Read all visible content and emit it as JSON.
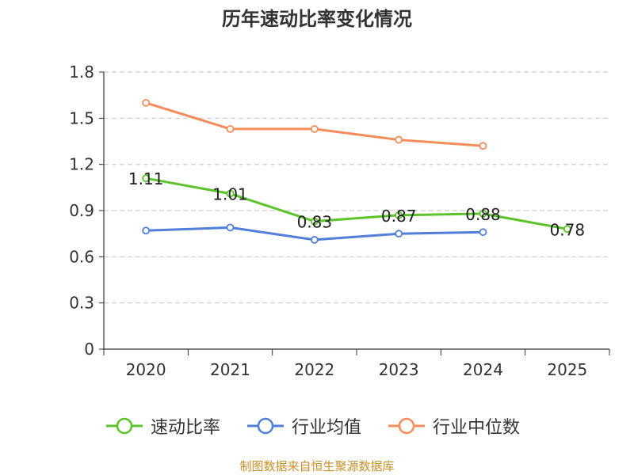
{
  "chart_data": {
    "type": "line",
    "title": "历年速动比率变化情况",
    "categories": [
      "2020",
      "2021",
      "2022",
      "2023",
      "2024",
      "2025"
    ],
    "ylim": [
      0,
      1.8
    ],
    "yticks": [
      "0",
      "0.3",
      "0.6",
      "0.9",
      "1.2",
      "1.5",
      "1.8"
    ],
    "grid": true,
    "legend_position": "bottom",
    "series": [
      {
        "name": "速动比率",
        "color": "#5bc42a",
        "values": [
          1.11,
          1.01,
          0.83,
          0.87,
          0.88,
          0.78
        ],
        "labels": [
          "1.11",
          "1.01",
          "0.83",
          "0.87",
          "0.88",
          "0.78"
        ]
      },
      {
        "name": "行业均值",
        "color": "#4f7fd9",
        "values": [
          0.77,
          0.79,
          0.71,
          0.75,
          0.76,
          null
        ]
      },
      {
        "name": "行业中位数",
        "color": "#f58d5a",
        "values": [
          1.6,
          1.43,
          1.43,
          1.36,
          1.32,
          null
        ]
      }
    ]
  },
  "footer": {
    "source": "制图数据来自恒生聚源数据库"
  }
}
